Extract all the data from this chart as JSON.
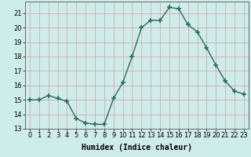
{
  "x": [
    0,
    1,
    2,
    3,
    4,
    5,
    6,
    7,
    8,
    9,
    10,
    11,
    12,
    13,
    14,
    15,
    16,
    17,
    18,
    19,
    20,
    21,
    22,
    23
  ],
  "y": [
    15.0,
    15.0,
    15.3,
    15.1,
    14.9,
    13.7,
    13.4,
    13.3,
    13.3,
    15.1,
    16.2,
    18.0,
    20.0,
    20.5,
    20.5,
    21.4,
    21.3,
    20.2,
    19.7,
    18.6,
    17.4,
    16.3,
    15.6,
    15.4
  ],
  "xlabel": "Humidex (Indice chaleur)",
  "xlim": [
    -0.5,
    23.5
  ],
  "ylim": [
    13,
    21.8
  ],
  "yticks": [
    13,
    14,
    15,
    16,
    17,
    18,
    19,
    20,
    21
  ],
  "xticks": [
    0,
    1,
    2,
    3,
    4,
    5,
    6,
    7,
    8,
    9,
    10,
    11,
    12,
    13,
    14,
    15,
    16,
    17,
    18,
    19,
    20,
    21,
    22,
    23
  ],
  "line_color": "#2d6b5e",
  "marker_color": "#2d6b5e",
  "bg_color": "#ceecea",
  "grid_color": "#d4a0a0",
  "xlabel_fontsize": 7,
  "tick_fontsize": 6,
  "line_width": 1.0,
  "marker_size": 4
}
